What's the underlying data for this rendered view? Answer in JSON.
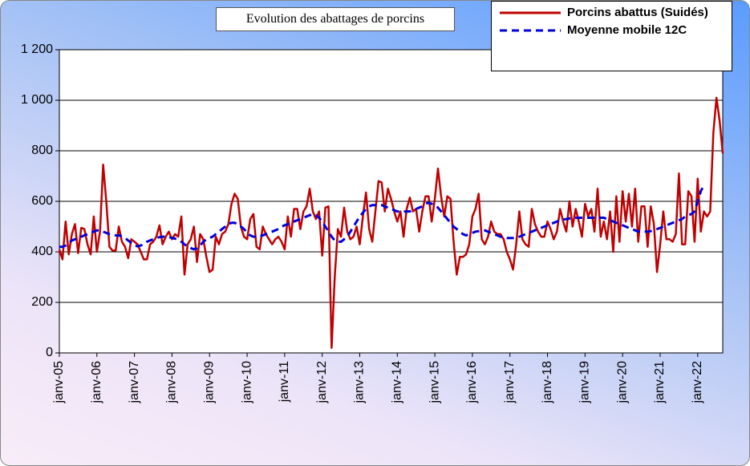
{
  "chart_data": {
    "type": "line",
    "title": "Evolution des abattages de porcins",
    "categories": [
      "janv-05",
      null,
      null,
      null,
      null,
      null,
      null,
      null,
      null,
      null,
      null,
      null,
      "janv-06",
      null,
      null,
      null,
      null,
      null,
      null,
      null,
      null,
      null,
      null,
      null,
      "janv-07",
      null,
      null,
      null,
      null,
      null,
      null,
      null,
      null,
      null,
      null,
      null,
      "janv-08",
      null,
      null,
      null,
      null,
      null,
      null,
      null,
      null,
      null,
      null,
      null,
      "janv-09",
      null,
      null,
      null,
      null,
      null,
      null,
      null,
      null,
      null,
      null,
      null,
      "janv-10",
      null,
      null,
      null,
      null,
      null,
      null,
      null,
      null,
      null,
      null,
      null,
      "janv-11",
      null,
      null,
      null,
      null,
      null,
      null,
      null,
      null,
      null,
      null,
      null,
      "janv-12",
      null,
      null,
      null,
      null,
      null,
      null,
      null,
      null,
      null,
      null,
      null,
      "janv-13",
      null,
      null,
      null,
      null,
      null,
      null,
      null,
      null,
      null,
      null,
      null,
      "janv-14",
      null,
      null,
      null,
      null,
      null,
      null,
      null,
      null,
      null,
      null,
      null,
      "janv-15",
      null,
      null,
      null,
      null,
      null,
      null,
      null,
      null,
      null,
      null,
      null,
      "janv-16",
      null,
      null,
      null,
      null,
      null,
      null,
      null,
      null,
      null,
      null,
      null,
      "janv-17",
      null,
      null,
      null,
      null,
      null,
      null,
      null,
      null,
      null,
      null,
      null,
      "janv-18",
      null,
      null,
      null,
      null,
      null,
      null,
      null,
      null,
      null,
      null,
      null,
      "janv-19",
      null,
      null,
      null,
      null,
      null,
      null,
      null,
      null,
      null,
      null,
      null,
      "janv-20",
      null,
      null,
      null,
      null,
      null,
      null,
      null,
      null,
      null,
      null,
      null,
      "janv-21",
      null,
      null,
      null,
      null,
      null,
      null,
      null,
      null,
      null,
      null,
      null,
      "janv-22",
      null,
      null,
      null,
      null,
      null,
      null,
      null,
      null
    ],
    "series": [
      {
        "name": "Porcins abattus (Suidés)",
        "color": "#c00000",
        "style": "solid",
        "values": [
          410,
          370,
          520,
          390,
          470,
          510,
          395,
          495,
          490,
          430,
          390,
          540,
          400,
          480,
          745,
          600,
          420,
          405,
          405,
          500,
          440,
          420,
          375,
          450,
          440,
          430,
          400,
          370,
          370,
          430,
          440,
          460,
          505,
          430,
          460,
          480,
          450,
          470,
          460,
          540,
          310,
          430,
          450,
          500,
          360,
          470,
          450,
          380,
          320,
          330,
          460,
          430,
          470,
          480,
          510,
          590,
          630,
          610,
          500,
          460,
          450,
          530,
          550,
          420,
          410,
          500,
          470,
          450,
          430,
          450,
          460,
          440,
          410,
          540,
          460,
          570,
          570,
          490,
          560,
          580,
          650,
          560,
          530,
          560,
          385,
          575,
          580,
          20,
          300,
          490,
          460,
          575,
          480,
          450,
          460,
          500,
          430,
          540,
          635,
          490,
          440,
          560,
          680,
          675,
          560,
          650,
          610,
          560,
          520,
          560,
          460,
          570,
          615,
          560,
          570,
          480,
          560,
          620,
          620,
          520,
          610,
          730,
          620,
          540,
          620,
          610,
          440,
          310,
          380,
          380,
          390,
          430,
          540,
          570,
          630,
          450,
          430,
          460,
          520,
          480,
          470,
          470,
          450,
          400,
          370,
          330,
          430,
          560,
          450,
          430,
          420,
          570,
          510,
          480,
          460,
          460,
          520,
          490,
          450,
          480,
          570,
          520,
          480,
          600,
          500,
          570,
          520,
          460,
          590,
          540,
          570,
          480,
          650,
          460,
          520,
          450,
          560,
          400,
          620,
          440,
          640,
          520,
          630,
          500,
          650,
          440,
          580,
          580,
          420,
          580,
          510,
          320,
          430,
          560,
          450,
          450,
          440,
          470,
          710,
          430,
          430,
          640,
          620,
          440,
          690,
          480,
          560,
          540,
          560,
          870,
          1010,
          920,
          790
        ]
      },
      {
        "name": "Moyenne mobile 12C",
        "color": "#0000dd",
        "style": "dashed",
        "values": [
          420,
          420,
          425,
          435,
          445,
          450,
          455,
          460,
          465,
          470,
          475,
          480,
          485,
          485,
          480,
          475,
          470,
          468,
          465,
          465,
          462,
          455,
          445,
          435,
          425,
          422,
          425,
          430,
          440,
          445,
          450,
          455,
          458,
          460,
          460,
          458,
          455,
          452,
          448,
          440,
          430,
          420,
          415,
          410,
          415,
          425,
          440,
          450,
          455,
          460,
          470,
          480,
          490,
          500,
          510,
          515,
          515,
          510,
          500,
          490,
          475,
          465,
          460,
          460,
          462,
          465,
          470,
          475,
          480,
          485,
          490,
          500,
          505,
          510,
          515,
          520,
          525,
          530,
          535,
          540,
          545,
          550,
          545,
          535,
          520,
          500,
          480,
          460,
          445,
          440,
          440,
          450,
          460,
          480,
          500,
          520,
          540,
          555,
          570,
          580,
          585,
          585,
          585,
          585,
          580,
          575,
          570,
          565,
          560,
          560,
          560,
          560,
          560,
          565,
          570,
          575,
          580,
          590,
          595,
          590,
          585,
          575,
          560,
          545,
          530,
          515,
          500,
          490,
          480,
          470,
          465,
          470,
          475,
          480,
          482,
          485,
          485,
          480,
          475,
          470,
          465,
          460,
          458,
          455,
          455,
          455,
          455,
          460,
          465,
          470,
          475,
          480,
          485,
          490,
          495,
          500,
          505,
          510,
          515,
          520,
          525,
          528,
          530,
          532,
          534,
          535,
          535,
          535,
          535,
          535,
          535,
          535,
          535,
          535,
          535,
          530,
          525,
          520,
          515,
          510,
          505,
          500,
          495,
          490,
          485,
          480,
          480,
          480,
          480,
          482,
          485,
          490,
          495,
          500,
          505,
          510,
          515,
          520,
          525,
          530,
          540,
          545,
          550,
          560,
          600,
          640,
          665,
          null,
          null,
          null,
          null,
          null,
          null
        ]
      }
    ],
    "ylim": [
      0,
      1200
    ],
    "yticks": [
      0,
      200,
      400,
      600,
      800,
      {
        "value": 1000,
        "label": "1 000"
      },
      {
        "value": 1200,
        "label": "1 200"
      }
    ],
    "grid": true,
    "legend": "top-right"
  }
}
